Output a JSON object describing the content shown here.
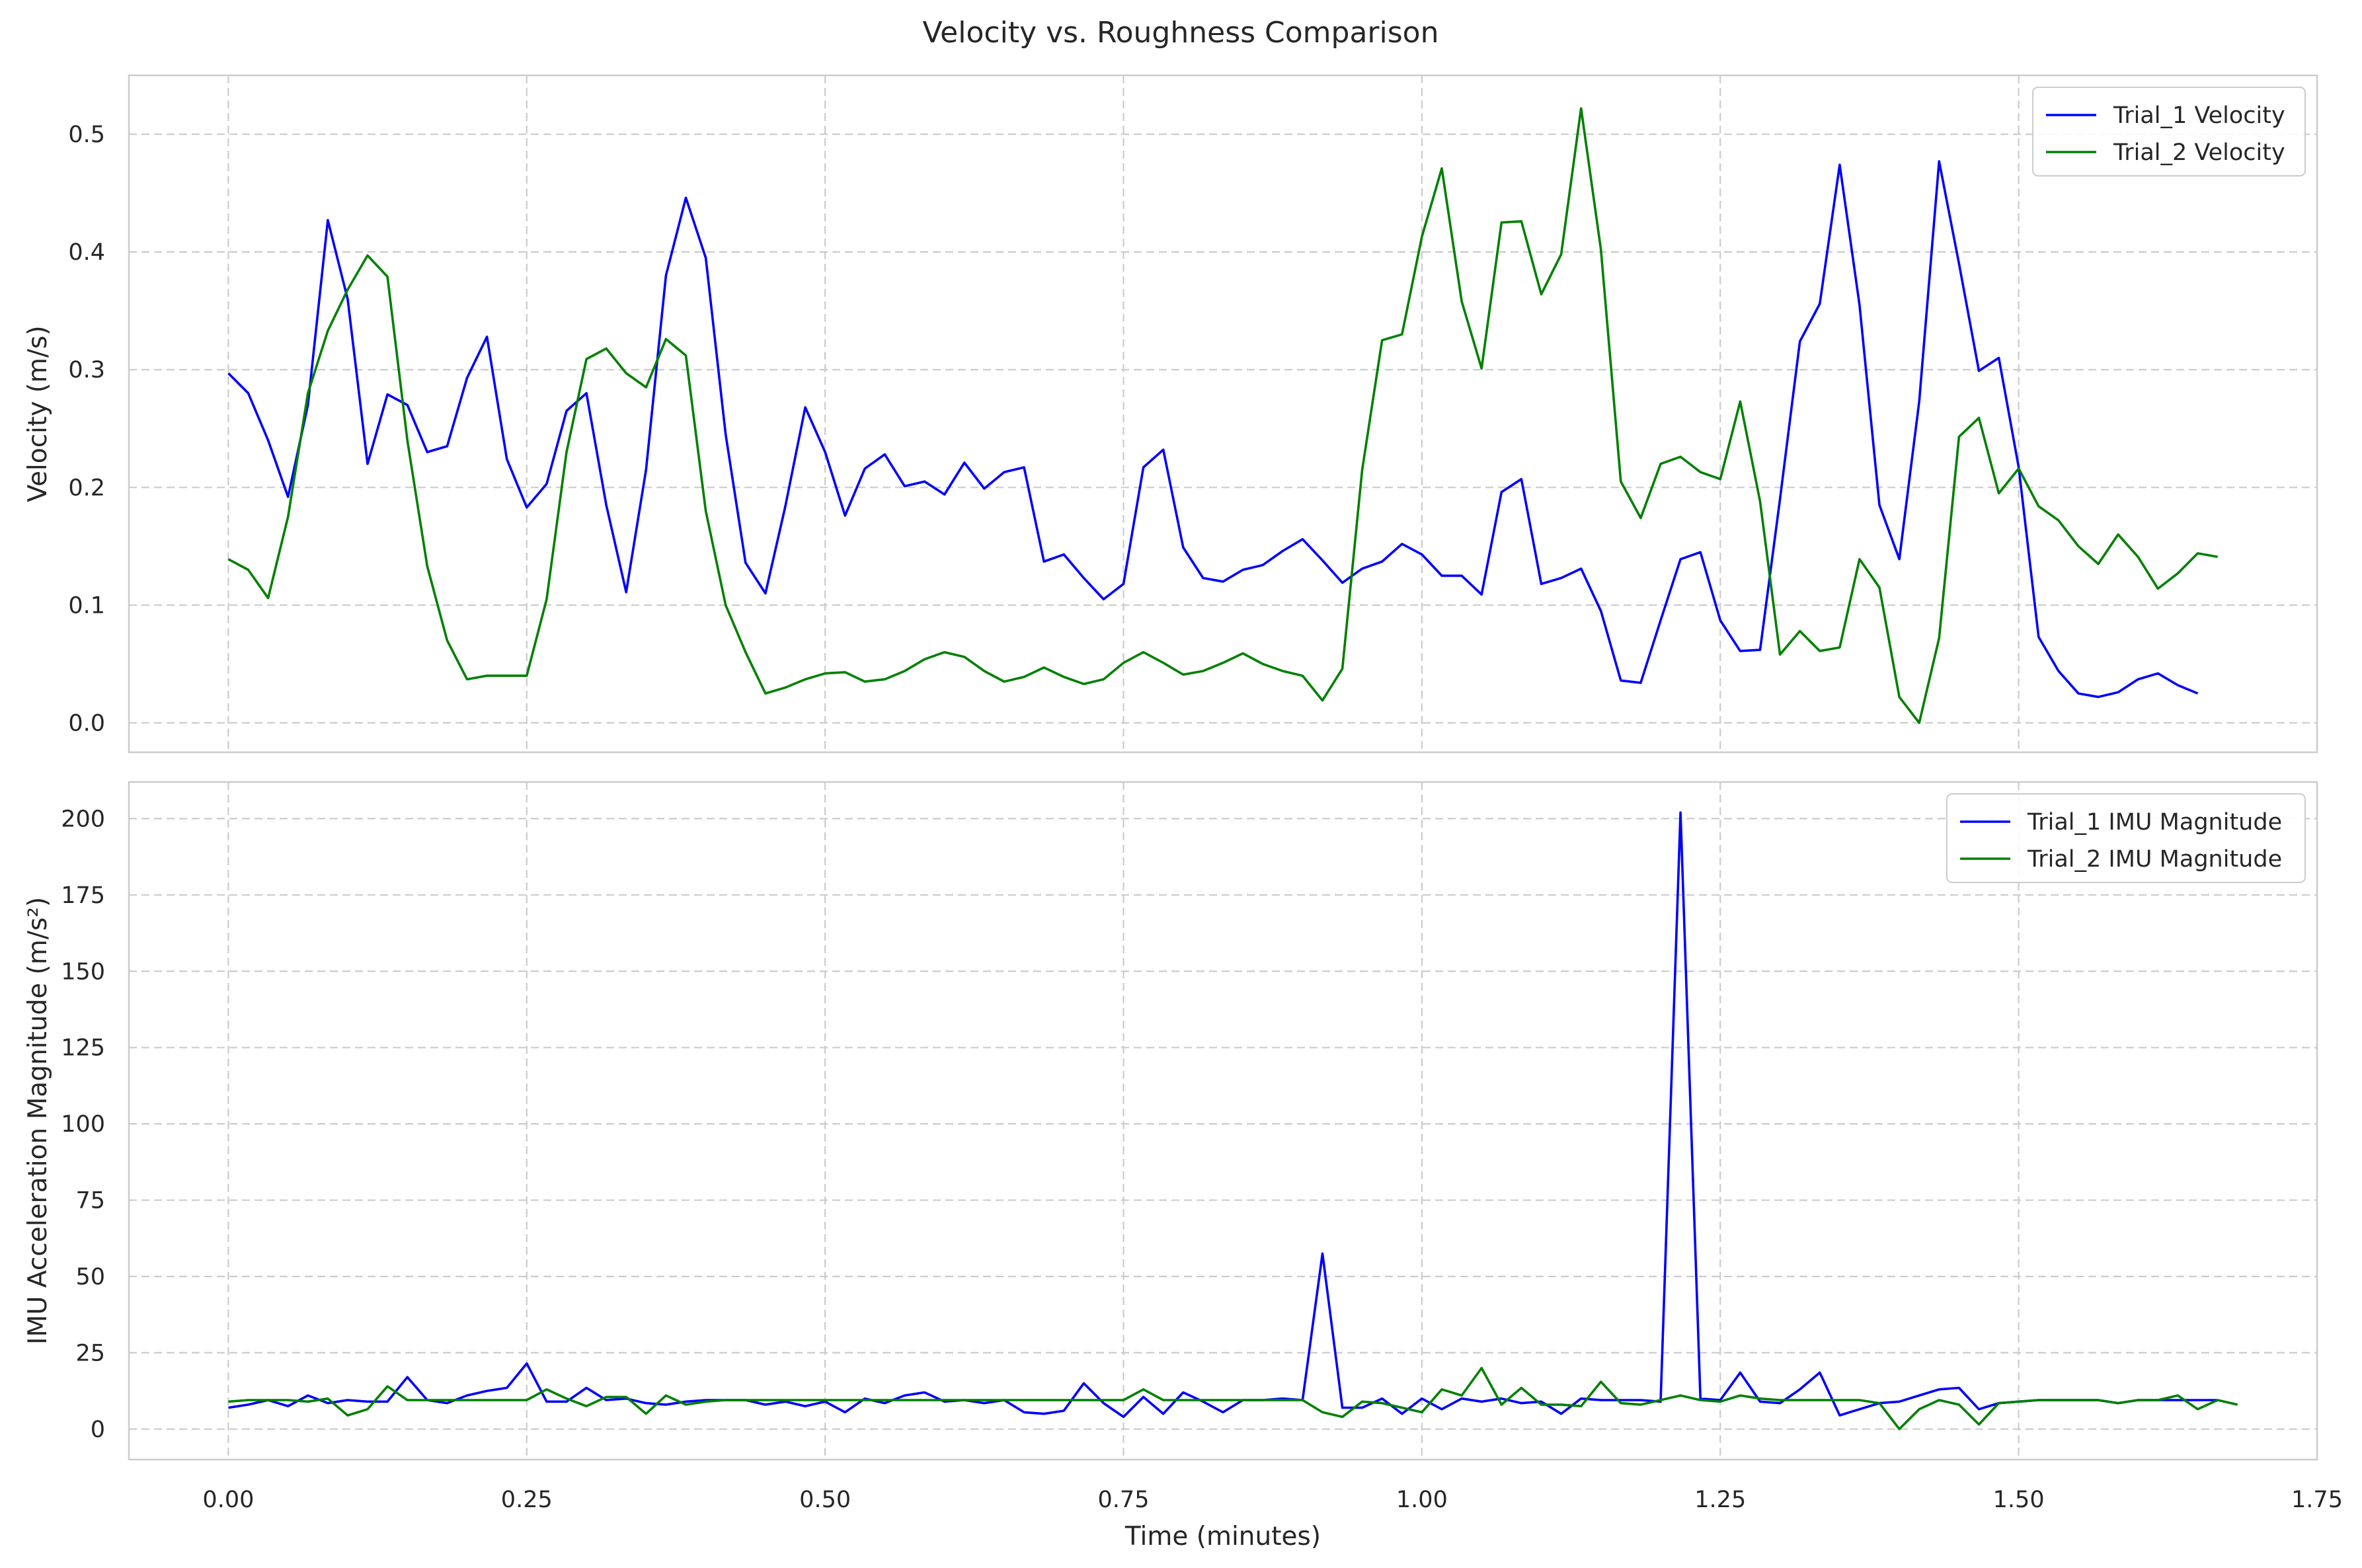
{
  "title": "Velocity vs. Roughness Comparison",
  "colors": {
    "trial_1": "#0000ff",
    "trial_2": "#008000",
    "grid": "#cccccc",
    "frame": "#cccccc"
  },
  "chart_data": [
    {
      "type": "line",
      "ylabel": "Velocity (m/s)",
      "xlabel": "",
      "xlim": [
        -0.0833,
        1.75
      ],
      "ylim": [
        -0.025,
        0.55
      ],
      "grid": true,
      "legend_position": "top-right",
      "x_ticks": [
        0,
        0.25,
        0.5,
        0.75,
        1.0,
        1.25,
        1.5,
        1.75
      ],
      "x_tick_labels": [],
      "y_ticks": [
        0.0,
        0.1,
        0.2,
        0.3,
        0.4,
        0.5
      ],
      "y_tick_labels": [
        "0.0",
        "0.1",
        "0.2",
        "0.3",
        "0.4",
        "0.5"
      ],
      "series": [
        {
          "name": "Trial_1 Velocity",
          "color": "#0000ff",
          "x_start": 0,
          "x_step": 0.016667,
          "values": [
            0.297,
            0.28,
            0.24,
            0.192,
            0.27,
            0.427,
            0.36,
            0.22,
            0.279,
            0.27,
            0.23,
            0.235,
            0.293,
            0.328,
            0.224,
            0.183,
            0.203,
            0.265,
            0.28,
            0.185,
            0.111,
            0.215,
            0.38,
            0.446,
            0.395,
            0.245,
            0.136,
            0.11,
            0.184,
            0.268,
            0.23,
            0.176,
            0.216,
            0.228,
            0.201,
            0.205,
            0.194,
            0.221,
            0.199,
            0.213,
            0.217,
            0.137,
            0.143,
            0.123,
            0.105,
            0.118,
            0.217,
            0.232,
            0.149,
            0.123,
            0.12,
            0.13,
            0.134,
            0.146,
            0.156,
            0.138,
            0.119,
            0.131,
            0.137,
            0.152,
            0.143,
            0.125,
            0.125,
            0.109,
            0.196,
            0.207,
            0.118,
            0.123,
            0.131,
            0.095,
            0.036,
            0.034,
            0.087,
            0.139,
            0.145,
            0.087,
            0.061,
            0.062,
            0.19,
            0.324,
            0.356,
            0.474,
            0.355,
            0.185,
            0.139,
            0.273,
            0.477,
            0.39,
            0.299,
            0.31,
            0.217,
            0.073,
            0.044,
            0.025,
            0.022,
            0.026,
            0.037,
            0.042,
            0.032,
            0.025
          ]
        },
        {
          "name": "Trial_2 Velocity",
          "color": "#008000",
          "x_start": 0,
          "x_step": 0.016667,
          "values": [
            0.139,
            0.13,
            0.106,
            0.175,
            0.28,
            0.333,
            0.368,
            0.397,
            0.379,
            0.24,
            0.133,
            0.07,
            0.037,
            0.04,
            0.04,
            0.04,
            0.105,
            0.23,
            0.309,
            0.318,
            0.297,
            0.285,
            0.326,
            0.312,
            0.18,
            0.1,
            0.06,
            0.025,
            0.03,
            0.037,
            0.042,
            0.043,
            0.035,
            0.037,
            0.044,
            0.054,
            0.06,
            0.056,
            0.044,
            0.035,
            0.039,
            0.047,
            0.039,
            0.033,
            0.037,
            0.051,
            0.06,
            0.051,
            0.041,
            0.044,
            0.051,
            0.059,
            0.05,
            0.044,
            0.04,
            0.019,
            0.046,
            0.215,
            0.325,
            0.33,
            0.413,
            0.471,
            0.358,
            0.301,
            0.425,
            0.426,
            0.364,
            0.398,
            0.522,
            0.402,
            0.205,
            0.174,
            0.22,
            0.226,
            0.213,
            0.207,
            0.273,
            0.188,
            0.058,
            0.078,
            0.061,
            0.064,
            0.139,
            0.115,
            0.022,
            0.0,
            0.072,
            0.243,
            0.259,
            0.195,
            0.216,
            0.184,
            0.172,
            0.15,
            0.135,
            0.16,
            0.141,
            0.114,
            0.127,
            0.144,
            0.141
          ]
        }
      ]
    },
    {
      "type": "line",
      "ylabel": "IMU Acceleration Magnitude (m/s²)",
      "xlabel": "Time (minutes)",
      "xlim": [
        -0.0833,
        1.75
      ],
      "ylim": [
        -10,
        212
      ],
      "grid": true,
      "legend_position": "top-right",
      "x_ticks": [
        0,
        0.25,
        0.5,
        0.75,
        1.0,
        1.25,
        1.5,
        1.75
      ],
      "x_tick_labels": [
        "0.00",
        "0.25",
        "0.50",
        "0.75",
        "1.00",
        "1.25",
        "1.50",
        "1.75"
      ],
      "y_ticks": [
        0,
        25,
        50,
        75,
        100,
        125,
        150,
        175,
        200
      ],
      "y_tick_labels": [
        "0",
        "25",
        "50",
        "75",
        "100",
        "125",
        "150",
        "175",
        "200"
      ],
      "series": [
        {
          "name": "Trial_1 IMU Magnitude",
          "color": "#0000ff",
          "x_start": 0,
          "x_step": 0.016667,
          "values": [
            7,
            8,
            9.5,
            7.5,
            11,
            8.5,
            9.5,
            9,
            9,
            17,
            9.5,
            8.5,
            11,
            12.5,
            13.5,
            21.5,
            9,
            9,
            13.5,
            9.5,
            10,
            8.5,
            8,
            9,
            9.5,
            9.5,
            9.5,
            8,
            9,
            7.5,
            9,
            5.5,
            10,
            8.5,
            11,
            12,
            9,
            9.5,
            8.5,
            9.5,
            5.5,
            5,
            6,
            15,
            8.5,
            4,
            10.5,
            5,
            12,
            9,
            5.5,
            9.5,
            9.5,
            10,
            9.5,
            57.5,
            7,
            7,
            10,
            5,
            10,
            6.5,
            10,
            9,
            10,
            8.5,
            9,
            5,
            10,
            9.5,
            9.5,
            9.5,
            9,
            202,
            10,
            9.5,
            18.5,
            9,
            8.5,
            13,
            18.5,
            4.5,
            6.5,
            8.5,
            9,
            11,
            13,
            13.5,
            6.5,
            8.5,
            9,
            9.5,
            9.5,
            9.5,
            9.5,
            8.5,
            9.5,
            9.5,
            9.5,
            9.5,
            9.5
          ]
        },
        {
          "name": "Trial_2 IMU Magnitude",
          "color": "#008000",
          "x_start": 0,
          "x_step": 0.016667,
          "values": [
            9,
            9.5,
            9.5,
            9.5,
            9,
            10,
            4.5,
            6.5,
            14,
            9.5,
            9.5,
            9.5,
            9.5,
            9.5,
            9.5,
            9.5,
            13,
            10,
            7.5,
            10.5,
            10.5,
            5,
            11,
            8,
            9,
            9.5,
            9.5,
            9.5,
            9.5,
            9.5,
            9.5,
            9.5,
            9.5,
            9.5,
            9.5,
            9.5,
            9.5,
            9.5,
            9.5,
            9.5,
            9.5,
            9.5,
            9.5,
            9.5,
            9.5,
            9.5,
            13,
            9.5,
            9.5,
            9.5,
            9.5,
            9.5,
            9.5,
            9.5,
            9.5,
            5.5,
            4,
            9,
            8.5,
            7,
            5.5,
            13,
            11,
            20,
            8,
            13.5,
            8,
            8,
            7.5,
            15.5,
            8.5,
            8,
            9.5,
            11,
            9.5,
            9,
            11,
            10,
            9.5,
            9.5,
            9.5,
            9.5,
            9.5,
            8.5,
            0,
            6.5,
            9.5,
            8,
            1.5,
            8.5,
            9,
            9.5,
            9.5,
            9.5,
            9.5,
            8.5,
            9.5,
            9.5,
            11,
            6.5,
            9.5,
            8
          ]
        }
      ]
    }
  ]
}
